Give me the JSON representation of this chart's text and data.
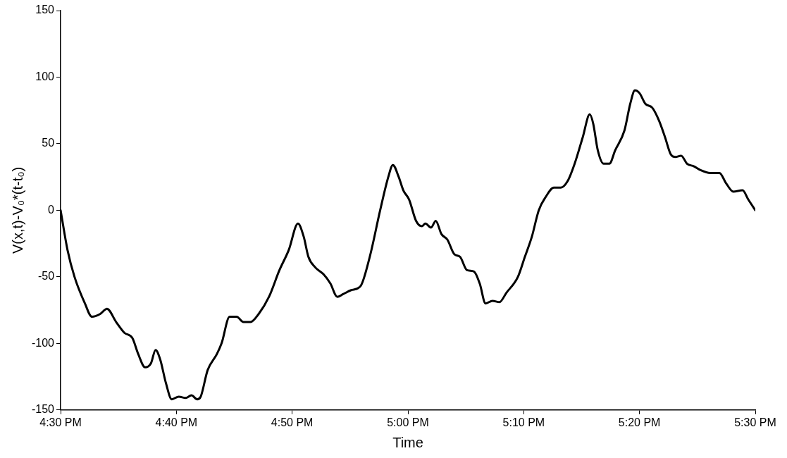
{
  "chart_data": {
    "type": "line",
    "xlabel": "Time",
    "ylabel": "V(x,t)-V₀*(t-t₀)",
    "x": [
      16.5,
      16.51,
      16.52,
      16.535,
      16.545,
      16.5567,
      16.5667,
      16.58,
      16.5917,
      16.6033,
      16.6117,
      16.6217,
      16.63,
      16.6367,
      16.6433,
      16.6517,
      16.66,
      16.67,
      16.68,
      16.6883,
      16.6967,
      16.7017,
      16.7117,
      16.725,
      16.7317,
      16.7433,
      16.7533,
      16.7633,
      16.7733,
      16.785,
      16.8,
      16.815,
      16.8283,
      16.8417,
      16.85,
      16.8567,
      16.8667,
      16.8783,
      16.8883,
      16.8983,
      16.9067,
      16.9183,
      16.9317,
      16.945,
      16.96,
      16.9717,
      16.9783,
      16.9867,
      16.9933,
      17.0017,
      17.0117,
      17.02,
      17.025,
      17.0333,
      17.04,
      17.0483,
      17.0567,
      17.0667,
      17.075,
      17.085,
      17.095,
      17.1033,
      17.1117,
      17.1217,
      17.1317,
      17.1417,
      17.1583,
      17.1683,
      17.1783,
      17.1883,
      17.1983,
      17.21,
      17.22,
      17.23,
      17.24,
      17.2517,
      17.2617,
      17.2667,
      17.2733,
      17.2817,
      17.29,
      17.2983,
      17.3117,
      17.32,
      17.3267,
      17.3333,
      17.3417,
      17.3517,
      17.3617,
      17.37,
      17.3783,
      17.385,
      17.3933,
      17.4017,
      17.4117,
      17.4217,
      17.435,
      17.4483,
      17.4583,
      17.4683,
      17.4817,
      17.49,
      17.5
    ],
    "series": [
      {
        "color": "#000000",
        "values": [
          0,
          -30,
          -50,
          -70,
          -80,
          -78,
          -74,
          -84,
          -92,
          -96,
          -108,
          -118,
          -115,
          -105,
          -112,
          -130,
          -142,
          -140,
          -141,
          -139,
          -142,
          -140,
          -120,
          -108,
          -100,
          -80,
          -80,
          -84,
          -84,
          -78,
          -65,
          -45,
          -30,
          -10,
          -20,
          -35,
          -43,
          -48,
          -55,
          -65,
          -63,
          -60,
          -57,
          -35,
          0,
          25,
          34,
          25,
          15,
          8,
          -8,
          -12,
          -10,
          -13,
          -8,
          -18,
          -22,
          -33,
          -35,
          -45,
          -46,
          -55,
          -70,
          -68,
          -69,
          -62,
          -50,
          -35,
          -20,
          0,
          10,
          17,
          17,
          22,
          35,
          55,
          72,
          65,
          45,
          35,
          35,
          45,
          60,
          80,
          90,
          88,
          80,
          77,
          67,
          55,
          42,
          40,
          41,
          35,
          33,
          30,
          28,
          28,
          20,
          14,
          15,
          8,
          0
        ]
      }
    ],
    "xlim": [
      16.5,
      17.5
    ],
    "xticks": [
      {
        "value": 16.5,
        "label": "4:30 PM"
      },
      {
        "value": 16.6667,
        "label": "4:40 PM"
      },
      {
        "value": 16.8333,
        "label": "4:50 PM"
      },
      {
        "value": 17,
        "label": "5:00 PM"
      },
      {
        "value": 17.1667,
        "label": "5:10 PM"
      },
      {
        "value": 17.3333,
        "label": "5:20 PM"
      },
      {
        "value": 17.5,
        "label": "5:30 PM"
      }
    ],
    "ylim": [
      -150,
      150
    ],
    "yticks": [
      -150,
      -100,
      -50,
      0,
      50,
      100,
      150
    ],
    "grid": false,
    "legend": false,
    "marker": "none",
    "line_style": "solid"
  }
}
